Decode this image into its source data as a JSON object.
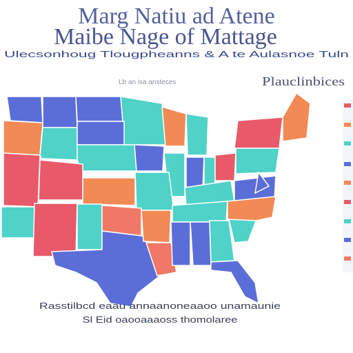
{
  "header": {
    "title_line1": "Marg Natiu ad Atene",
    "title_line2": "Maibe Nage of Mattage",
    "subtitle": "Ulecsonhoug Tlougpheanns & A te Aulasnoe Tuln"
  },
  "map": {
    "label": "Lb an isa ansteces",
    "legend_title": "Plauclinbices"
  },
  "footer": {
    "line1": "Rasstilbcd eaau annaanoneaaoo unamaunie",
    "line2": "Sl Eid oaooaaaoss thomolaree"
  }
}
